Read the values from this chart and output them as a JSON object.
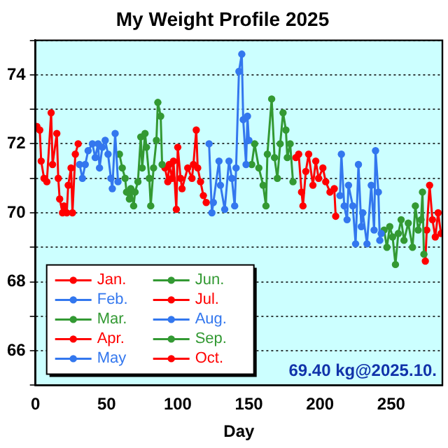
{
  "chart_data": {
    "type": "line",
    "title": "My Weight Profile 2025",
    "xlabel": "Day",
    "xlim": [
      0,
      286
    ],
    "xticks": [
      0,
      50,
      100,
      150,
      200,
      250
    ],
    "ylim": [
      65,
      75
    ],
    "yticks": [
      {
        "value": 65,
        "label": null
      },
      66,
      {
        "value": 67,
        "label": null
      },
      68,
      {
        "value": 69,
        "label": null
      },
      70,
      {
        "value": 71,
        "label": null
      },
      72,
      {
        "value": 73,
        "label": null
      },
      74,
      {
        "value": 75,
        "label": null
      }
    ],
    "grid": "y",
    "legend": "bottom left",
    "marker": "circle",
    "line_style": "solid",
    "annotations": [
      "69.40 kg@2025.10."
    ],
    "series": [
      {
        "name": "Jan.",
        "color": "#ff0000",
        "x": [
          1,
          3,
          4,
          6,
          8,
          11,
          12,
          15,
          16,
          17,
          19,
          20,
          22,
          23,
          25,
          26,
          28,
          30
        ],
        "values": [
          72.5,
          72.4,
          71.5,
          71.0,
          70.9,
          72.9,
          71.4,
          72.3,
          71.0,
          70.4,
          70.0,
          70.2,
          70.0,
          70.8,
          71.3,
          70.0,
          71.7,
          72.0
        ]
      },
      {
        "name": "Feb.",
        "color": "#3377ee",
        "x": [
          31,
          33,
          35,
          37,
          40,
          42,
          44,
          45,
          47,
          49,
          51,
          53,
          54,
          56,
          58
        ],
        "values": [
          71.4,
          71.0,
          71.4,
          71.8,
          72.0,
          71.6,
          72.0,
          71.3,
          71.9,
          72.1,
          71.7,
          71.0,
          70.7,
          72.3,
          70.9
        ]
      },
      {
        "name": "Mar.",
        "color": "#339933",
        "x": [
          59,
          61,
          63,
          64,
          66,
          67,
          69,
          70,
          72,
          74,
          75,
          77,
          78,
          80,
          81,
          83,
          85,
          86,
          88,
          89
        ],
        "values": [
          71.7,
          71.3,
          71.0,
          70.6,
          70.4,
          70.7,
          70.2,
          70.6,
          70.9,
          72.2,
          71.3,
          72.3,
          71.9,
          71.0,
          70.2,
          71.3,
          72.1,
          73.2,
          72.8,
          71.4
        ]
      },
      {
        "name": "Apr.",
        "color": "#ff0000",
        "x": [
          91,
          93,
          94,
          96,
          97,
          99,
          100,
          102,
          103,
          107,
          110,
          111,
          113,
          114,
          116,
          118,
          120
        ],
        "values": [
          71.3,
          70.9,
          71.4,
          71.0,
          71.5,
          70.1,
          71.9,
          71.0,
          70.7,
          71.3,
          71.0,
          71.4,
          72.4,
          71.3,
          70.9,
          70.5,
          70.3
        ]
      },
      {
        "name": "May",
        "color": "#3377ee",
        "x": [
          122,
          124,
          125,
          129,
          130,
          133,
          136,
          138,
          140,
          141,
          143,
          145,
          146,
          148,
          149,
          150
        ],
        "values": [
          72.0,
          70.0,
          70.3,
          71.5,
          70.8,
          70.1,
          71.5,
          71.0,
          70.2,
          71.3,
          74.1,
          74.6,
          72.7,
          71.4,
          72.8,
          72.1
        ]
      },
      {
        "name": "Jun.",
        "color": "#339933",
        "x": [
          152,
          154,
          157,
          160,
          162,
          163,
          166,
          168,
          170,
          172,
          174,
          176,
          177,
          179,
          181
        ],
        "values": [
          71.4,
          72.0,
          71.3,
          70.8,
          70.2,
          71.7,
          73.3,
          71.6,
          71.0,
          72.0,
          72.9,
          72.4,
          71.6,
          72.0,
          70.9
        ]
      },
      {
        "name": "Jul.",
        "color": "#ff0000",
        "x": [
          183,
          185,
          187,
          188,
          190,
          192,
          195,
          197,
          199,
          202,
          204,
          207,
          210,
          211
        ],
        "values": [
          71.6,
          71.7,
          70.6,
          70.2,
          71.2,
          71.7,
          70.8,
          71.5,
          71.0,
          71.3,
          70.9,
          70.6,
          70.7,
          69.9
        ]
      },
      {
        "name": "Aug.",
        "color": "#3377ee",
        "x": [
          214,
          215,
          217,
          219,
          220,
          223,
          225,
          227,
          229,
          230,
          233,
          236,
          238,
          239,
          241,
          242,
          243
        ],
        "values": [
          70.5,
          71.7,
          70.2,
          69.8,
          70.8,
          70.2,
          69.1,
          71.4,
          69.6,
          70.0,
          69.1,
          70.8,
          69.5,
          71.8,
          70.6,
          69.2,
          69.4
        ]
      },
      {
        "name": "Sep.",
        "color": "#339933",
        "x": [
          245,
          247,
          249,
          251,
          253,
          255,
          257,
          259,
          262,
          265,
          267,
          269,
          271,
          272,
          273
        ],
        "values": [
          69.5,
          69.0,
          69.6,
          69.3,
          68.5,
          69.4,
          69.8,
          69.2,
          69.7,
          69.0,
          70.2,
          69.5,
          69.8,
          70.6,
          68.8
        ]
      },
      {
        "name": "Oct.",
        "color": "#ff0000",
        "x": [
          274,
          275,
          277,
          279,
          281,
          283,
          285
        ],
        "values": [
          68.6,
          69.5,
          70.8,
          69.8,
          69.3,
          70.0,
          69.4
        ]
      }
    ]
  }
}
